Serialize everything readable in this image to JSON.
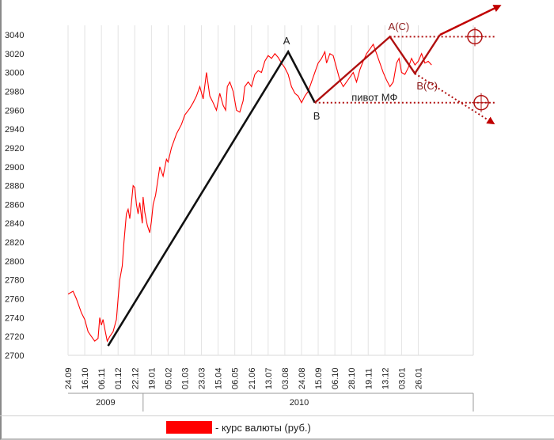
{
  "chart_data": {
    "type": "line",
    "x_ticks": [
      "24.09",
      "16.10",
      "06.11",
      "01.12",
      "22.12",
      "19.01",
      "05.02",
      "01.03",
      "23.03",
      "15.04",
      "06.05",
      "21.06",
      "13.07",
      "03.08",
      "24.08",
      "15.09",
      "06.10",
      "28.10",
      "19.11",
      "13.12",
      "03.01",
      "26.01"
    ],
    "years": [
      {
        "label": "2009",
        "from": 0,
        "to": 4
      },
      {
        "label": "2010",
        "from": 5,
        "to": 21
      }
    ],
    "y_ticks": [
      2700,
      2720,
      2740,
      2760,
      2780,
      2800,
      2820,
      2840,
      2860,
      2880,
      2900,
      2920,
      2940,
      2960,
      2980,
      3000,
      3020,
      3040
    ],
    "ylim": [
      2700,
      3040
    ],
    "xlim": [
      0,
      24.3
    ],
    "grid": "vertical",
    "series": [
      {
        "name": "курс валюты (руб.)",
        "color": "#ff0000",
        "points": [
          [
            0,
            2765
          ],
          [
            0.3,
            2768
          ],
          [
            0.5,
            2760
          ],
          [
            0.8,
            2745
          ],
          [
            1.0,
            2738
          ],
          [
            1.2,
            2725
          ],
          [
            1.4,
            2720
          ],
          [
            1.6,
            2715
          ],
          [
            1.8,
            2718
          ],
          [
            1.9,
            2740
          ],
          [
            2.0,
            2732
          ],
          [
            2.1,
            2738
          ],
          [
            2.2,
            2728
          ],
          [
            2.35,
            2715
          ],
          [
            2.5,
            2720
          ],
          [
            2.7,
            2725
          ],
          [
            2.9,
            2738
          ],
          [
            3.0,
            2760
          ],
          [
            3.1,
            2780
          ],
          [
            3.25,
            2795
          ],
          [
            3.35,
            2820
          ],
          [
            3.5,
            2850
          ],
          [
            3.6,
            2855
          ],
          [
            3.7,
            2845
          ],
          [
            3.8,
            2862
          ],
          [
            3.9,
            2880
          ],
          [
            4.0,
            2878
          ],
          [
            4.1,
            2860
          ],
          [
            4.2,
            2850
          ],
          [
            4.3,
            2862
          ],
          [
            4.45,
            2840
          ],
          [
            4.5,
            2868
          ],
          [
            4.6,
            2852
          ],
          [
            4.75,
            2838
          ],
          [
            4.9,
            2830
          ],
          [
            5.0,
            2842
          ],
          [
            5.1,
            2860
          ],
          [
            5.25,
            2870
          ],
          [
            5.4,
            2888
          ],
          [
            5.5,
            2900
          ],
          [
            5.7,
            2890
          ],
          [
            5.9,
            2908
          ],
          [
            6.0,
            2905
          ],
          [
            6.2,
            2920
          ],
          [
            6.5,
            2935
          ],
          [
            6.8,
            2945
          ],
          [
            7.0,
            2955
          ],
          [
            7.3,
            2962
          ],
          [
            7.5,
            2968
          ],
          [
            7.7,
            2975
          ],
          [
            7.9,
            2985
          ],
          [
            8.1,
            2972
          ],
          [
            8.3,
            3000
          ],
          [
            8.5,
            2975
          ],
          [
            8.7,
            2968
          ],
          [
            8.9,
            2960
          ],
          [
            9.1,
            2978
          ],
          [
            9.3,
            2965
          ],
          [
            9.45,
            2960
          ],
          [
            9.55,
            2985
          ],
          [
            9.7,
            2990
          ],
          [
            9.9,
            2980
          ],
          [
            10.1,
            2960
          ],
          [
            10.3,
            2958
          ],
          [
            10.5,
            2970
          ],
          [
            10.6,
            2985
          ],
          [
            10.8,
            2990
          ],
          [
            11.0,
            2985
          ],
          [
            11.2,
            2998
          ],
          [
            11.4,
            3002
          ],
          [
            11.6,
            3000
          ],
          [
            11.8,
            3012
          ],
          [
            12.0,
            3018
          ],
          [
            12.2,
            3015
          ],
          [
            12.4,
            3020
          ],
          [
            12.6,
            3016
          ],
          [
            12.8,
            3010
          ],
          [
            13.0,
            3005
          ],
          [
            13.2,
            2998
          ],
          [
            13.4,
            2985
          ],
          [
            13.6,
            2978
          ],
          [
            13.8,
            2975
          ],
          [
            14.0,
            2968
          ],
          [
            14.2,
            2975
          ],
          [
            14.4,
            2980
          ],
          [
            14.6,
            2990
          ],
          [
            14.8,
            3000
          ],
          [
            15.0,
            3010
          ],
          [
            15.2,
            3015
          ],
          [
            15.4,
            3022
          ],
          [
            15.5,
            3010
          ],
          [
            15.7,
            3020
          ],
          [
            15.9,
            3018
          ],
          [
            16.1,
            3005
          ],
          [
            16.3,
            2992
          ],
          [
            16.5,
            2985
          ],
          [
            16.7,
            2990
          ],
          [
            16.9,
            2995
          ],
          [
            17.1,
            3000
          ],
          [
            17.3,
            2990
          ],
          [
            17.5,
            3003
          ],
          [
            17.7,
            3012
          ],
          [
            17.9,
            3020
          ],
          [
            18.1,
            3025
          ],
          [
            18.3,
            3030
          ],
          [
            18.5,
            3020
          ],
          [
            18.7,
            3010
          ],
          [
            18.9,
            3000
          ],
          [
            19.1,
            2992
          ],
          [
            19.3,
            2985
          ],
          [
            19.5,
            2990
          ],
          [
            19.7,
            3010
          ],
          [
            19.85,
            3015
          ],
          [
            20.0,
            3000
          ],
          [
            20.2,
            2998
          ],
          [
            20.4,
            3005
          ],
          [
            20.6,
            3015
          ],
          [
            20.8,
            3008
          ],
          [
            21.0,
            3012
          ],
          [
            21.2,
            3020
          ],
          [
            21.4,
            3010
          ],
          [
            21.6,
            3012
          ],
          [
            21.8,
            3008
          ]
        ]
      }
    ],
    "annotations": {
      "wave_black": [
        [
          2.4,
          2710
        ],
        [
          13.2,
          3022
        ],
        [
          14.8,
          2968
        ]
      ],
      "wave_red": [
        [
          14.8,
          2968
        ],
        [
          19.3,
          3038
        ],
        [
          20.8,
          2999
        ],
        [
          22.3,
          3040
        ]
      ],
      "labels": [
        {
          "text": "A",
          "x": 12.9,
          "y": 3030
        },
        {
          "text": "B",
          "x": 14.7,
          "y": 2950
        },
        {
          "text": "A(C)",
          "x": 19.2,
          "y": 3045
        },
        {
          "text": "B(C)",
          "x": 20.9,
          "y": 2982
        },
        {
          "text": "пивот МФ",
          "x": 17.0,
          "y": 2970
        }
      ],
      "resistance_y": 3038,
      "pivot_y": 2968
    }
  },
  "legend_text": "- курс валюты (руб.)"
}
